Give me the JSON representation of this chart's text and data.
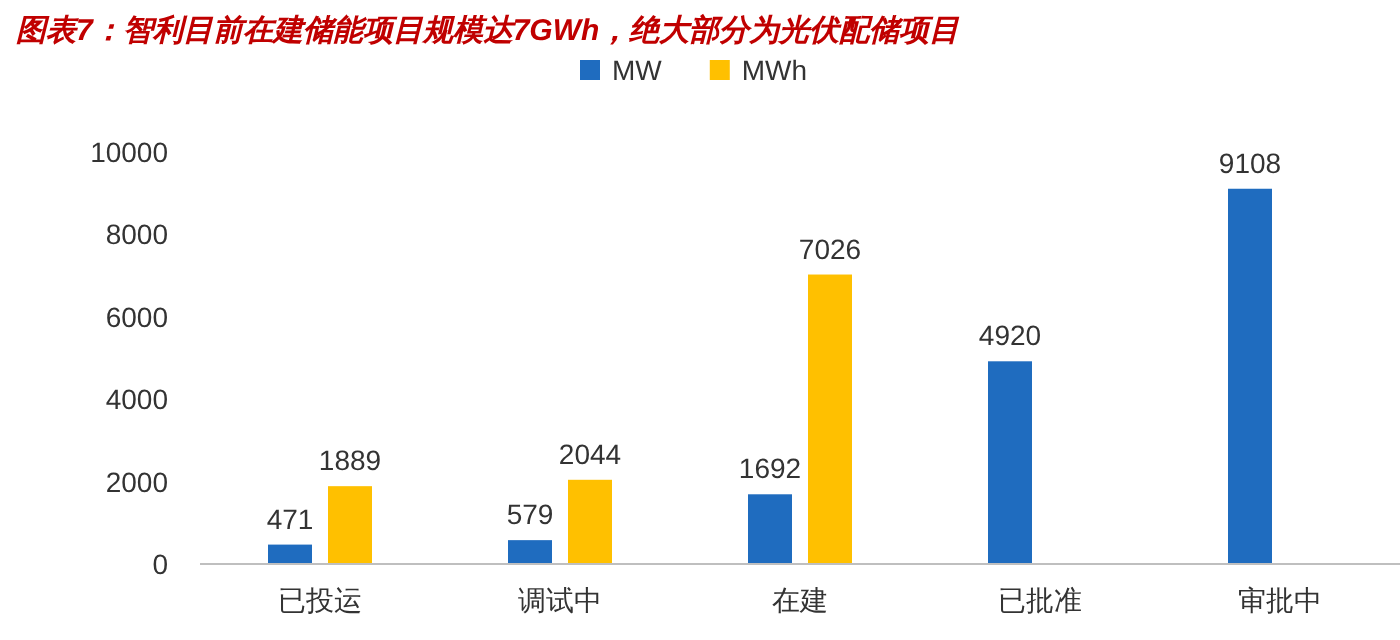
{
  "chart_data": {
    "type": "bar",
    "title": "图表7：智利目前在建储能项目规模达7GWh，绝大部分为光伏配储项目",
    "categories": [
      "已投运",
      "调试中",
      "在建",
      "已批准",
      "审批中"
    ],
    "series": [
      {
        "name": "MW",
        "color": "#1f6cbf",
        "values": [
          471,
          579,
          1692,
          4920,
          9108
        ]
      },
      {
        "name": "MWh",
        "color": "#ffc000",
        "values": [
          1889,
          2044,
          7026,
          null,
          null
        ]
      }
    ],
    "ylim": [
      0,
      10000
    ],
    "yticks": [
      0,
      2000,
      4000,
      6000,
      8000,
      10000
    ],
    "data_labels": true,
    "legend": "top",
    "grid": false
  }
}
